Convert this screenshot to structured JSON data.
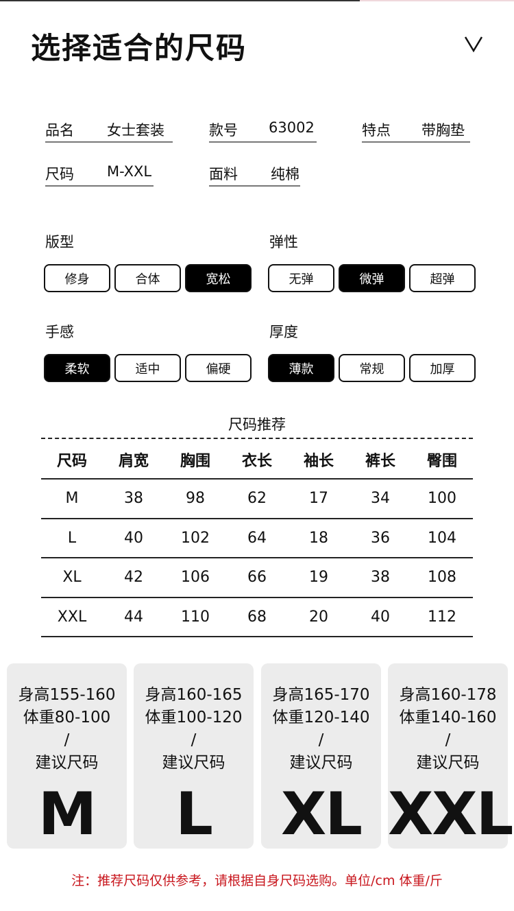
{
  "title": "选择适合的尺码",
  "info": [
    {
      "k": "品名",
      "v": "女士套装"
    },
    {
      "k": "款号",
      "v": "63002"
    },
    {
      "k": "特点",
      "v": "带胸垫"
    },
    {
      "k": "尺码",
      "v": "M-XXL"
    },
    {
      "k": "面料",
      "v": "纯棉"
    }
  ],
  "attributes": [
    {
      "label": "版型",
      "options": [
        "修身",
        "合体",
        "宽松"
      ],
      "selected": "宽松"
    },
    {
      "label": "弹性",
      "options": [
        "无弹",
        "微弹",
        "超弹"
      ],
      "selected": "微弹"
    },
    {
      "label": "手感",
      "options": [
        "柔软",
        "适中",
        "偏硬"
      ],
      "selected": "柔软"
    },
    {
      "label": "厚度",
      "options": [
        "薄款",
        "常规",
        "加厚"
      ],
      "selected": "薄款"
    }
  ],
  "table": {
    "title": "尺码推荐",
    "headers": [
      "尺码",
      "肩宽",
      "胸围",
      "衣长",
      "袖长",
      "裤长",
      "臀围"
    ],
    "rows": [
      [
        "M",
        "38",
        "98",
        "62",
        "17",
        "34",
        "100"
      ],
      [
        "L",
        "40",
        "102",
        "64",
        "18",
        "36",
        "104"
      ],
      [
        "XL",
        "42",
        "106",
        "66",
        "19",
        "38",
        "108"
      ],
      [
        "XXL",
        "44",
        "110",
        "68",
        "20",
        "40",
        "112"
      ]
    ]
  },
  "cards": [
    {
      "height": "身高155-160",
      "weight": "体重80-100",
      "slash": "/",
      "label": "建议尺码",
      "size": "M"
    },
    {
      "height": "身高160-165",
      "weight": "体重100-120",
      "slash": "/",
      "label": "建议尺码",
      "size": "L"
    },
    {
      "height": "身高165-170",
      "weight": "体重120-140",
      "slash": "/",
      "label": "建议尺码",
      "size": "XL"
    },
    {
      "height": "身高160-178",
      "weight": "体重140-160",
      "slash": "/",
      "label": "建议尺码",
      "size": "XXL"
    }
  ],
  "note": "注：推荐尺码仅供参考，请根据自身尺码选购。单位/cm 体重/斤",
  "colors": {
    "note": "#c8161d",
    "card_bg": "#ececec",
    "selected": "#000000"
  }
}
